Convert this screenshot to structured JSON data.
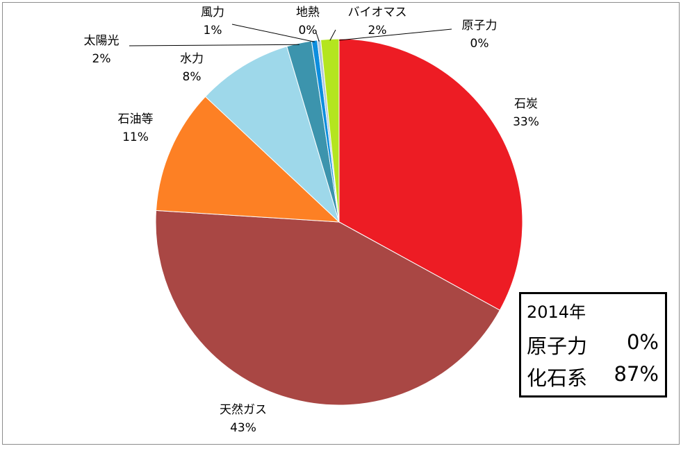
{
  "chart_data": {
    "type": "pie",
    "title": "",
    "slices": [
      {
        "label": "石炭",
        "pct_label": "33%",
        "value": 33.0,
        "color": "#ed1c24"
      },
      {
        "label": "天然ガス",
        "pct_label": "43%",
        "value": 43.0,
        "color": "#a94744"
      },
      {
        "label": "石油等",
        "pct_label": "11%",
        "value": 11.0,
        "color": "#fd8024"
      },
      {
        "label": "水力",
        "pct_label": "8%",
        "value": 8.4,
        "color": "#9ed8ea"
      },
      {
        "label": "太陽光",
        "pct_label": "2%",
        "value": 2.2,
        "color": "#3c94ad"
      },
      {
        "label": "風力",
        "pct_label": "1%",
        "value": 0.5,
        "color": "#0d8ede"
      },
      {
        "label": "地熱",
        "pct_label": "0%",
        "value": 0.3,
        "color": "#b4c8dc"
      },
      {
        "label": "バイオマス",
        "pct_label": "2%",
        "value": 1.6,
        "color": "#b4e51f"
      },
      {
        "label": "原子力",
        "pct_label": "0%",
        "value": 0.0,
        "color": "#7f7f7f"
      }
    ]
  },
  "summary": {
    "year": "2014年",
    "nuclear_label": "原子力",
    "nuclear_value": "0%",
    "fossil_label": "化石系",
    "fossil_value": "87%"
  }
}
